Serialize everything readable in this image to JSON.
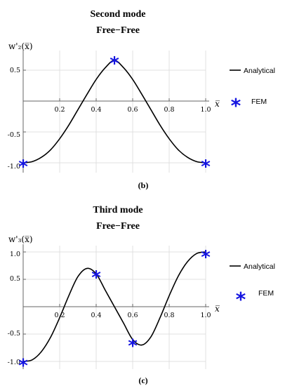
{
  "chart_data": [
    {
      "type": "line",
      "title": "Second mode",
      "subtitle": "Free−Free",
      "ylabel": "w'₂(x̅)",
      "xlabel": "x̅",
      "panel_label": "(b)",
      "xlim": [
        0,
        1.0
      ],
      "ylim": [
        -1.1,
        0.75
      ],
      "xticks": [
        0.2,
        0.4,
        0.6,
        0.8,
        1.0
      ],
      "xtick_labels": [
        "0.2",
        "0.4",
        "0.6",
        "0.8",
        "1.0"
      ],
      "yticks": [
        -1.0,
        -0.5,
        0.5
      ],
      "ytick_labels": [
        "-1.0",
        "-0.5",
        "0.5"
      ],
      "grid": true,
      "legend_position": "right",
      "series": [
        {
          "name": "Analytical",
          "style": "line",
          "color": "#000000",
          "x": [
            0.0,
            0.05,
            0.1,
            0.15,
            0.2,
            0.25,
            0.3,
            0.35,
            0.4,
            0.45,
            0.5,
            0.55,
            0.6,
            0.65,
            0.7,
            0.75,
            0.8,
            0.85,
            0.9,
            0.95,
            1.0
          ],
          "y": [
            -1.0,
            -0.98,
            -0.91,
            -0.79,
            -0.61,
            -0.39,
            -0.14,
            0.11,
            0.35,
            0.54,
            0.66,
            0.54,
            0.35,
            0.11,
            -0.14,
            -0.39,
            -0.61,
            -0.79,
            -0.91,
            -0.98,
            -1.0
          ]
        },
        {
          "name": "FEM",
          "style": "marker",
          "marker": "star",
          "color": "#1414e0",
          "x": [
            0.0,
            0.5,
            1.0
          ],
          "y": [
            -1.02,
            0.65,
            -1.02
          ]
        }
      ]
    },
    {
      "type": "line",
      "title": "Third mode",
      "subtitle": "Free−Free",
      "ylabel": "w'₃(x̅)",
      "xlabel": "x̅",
      "panel_label": "(c)",
      "xlim": [
        0,
        1.0
      ],
      "ylim": [
        -1.1,
        1.1
      ],
      "xticks": [
        0.2,
        0.4,
        0.6,
        0.8,
        1.0
      ],
      "xtick_labels": [
        "0.2",
        "0.4",
        "0.6",
        "0.8",
        "1.0"
      ],
      "yticks": [
        -1.0,
        -0.5,
        0.5,
        1.0
      ],
      "ytick_labels": [
        "-1.0",
        "-0.5",
        "0.5",
        "1.0"
      ],
      "grid": true,
      "legend_position": "right",
      "series": [
        {
          "name": "Analytical",
          "style": "line",
          "color": "#000000",
          "x": [
            0.0,
            0.05,
            0.1,
            0.15,
            0.2,
            0.25,
            0.3,
            0.35,
            0.4,
            0.45,
            0.5,
            0.55,
            0.6,
            0.65,
            0.7,
            0.75,
            0.8,
            0.85,
            0.9,
            0.95,
            1.0
          ],
          "y": [
            -1.0,
            -0.97,
            -0.82,
            -0.56,
            -0.2,
            0.2,
            0.55,
            0.7,
            0.6,
            0.3,
            0.0,
            -0.3,
            -0.6,
            -0.7,
            -0.55,
            -0.2,
            0.2,
            0.56,
            0.82,
            0.97,
            1.0
          ]
        },
        {
          "name": "FEM",
          "style": "marker",
          "marker": "star",
          "color": "#1414e0",
          "x": [
            0.0,
            0.4,
            0.6,
            1.0
          ],
          "y": [
            -1.03,
            0.58,
            -0.67,
            0.95
          ]
        }
      ]
    }
  ]
}
